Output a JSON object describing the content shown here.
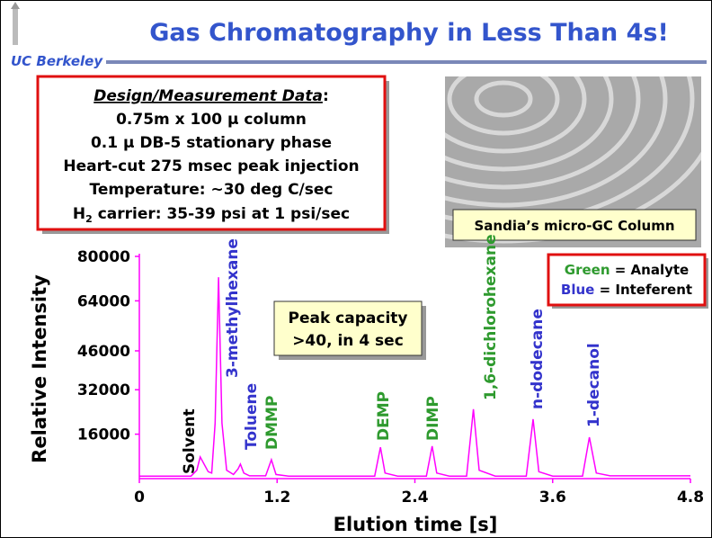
{
  "header": {
    "title": "Gas Chromatography in Less Than 4s!",
    "logo": "UC Berkeley"
  },
  "design_box": {
    "heading": "Design/Measurement Data",
    "heading_suffix": ":",
    "lines": [
      "0.75m x 100 μ column",
      "0.1 μ DB-5 stationary phase",
      "Heart-cut 275 msec peak injection",
      "Temperature: ~30 deg C/sec"
    ],
    "carrier": {
      "h": "H",
      "sub": "2",
      "rest": " carrier: 35-39 psi at 1 psi/sec"
    }
  },
  "photo_caption": "Sandia’s micro-GC Column",
  "legend_note": [
    {
      "word": "Green",
      "rest": " = Analyte",
      "color": "#2e9a2e"
    },
    {
      "word": "Blue",
      "rest": " = Inteferent",
      "color": "#3333cc"
    }
  ],
  "callout": [
    "Peak capacity",
    ">40, in 4 sec"
  ],
  "chart_data": {
    "type": "line",
    "x_label": "Elution time [s]",
    "y_label": "Relative Intensity",
    "color": "#ff00ff",
    "x": [
      0,
      0.45,
      0.5,
      0.53,
      0.6,
      0.63,
      0.66,
      0.69,
      0.72,
      0.76,
      0.82,
      0.86,
      0.88,
      0.91,
      0.96,
      1.1,
      1.15,
      1.19,
      1.3,
      2.05,
      2.1,
      2.14,
      2.25,
      2.5,
      2.55,
      2.59,
      2.7,
      2.85,
      2.91,
      2.96,
      3.1,
      3.37,
      3.43,
      3.48,
      3.6,
      3.86,
      3.92,
      3.98,
      4.1,
      4.8
    ],
    "values": [
      900,
      900,
      3000,
      7800,
      2500,
      2000,
      20000,
      72500,
      20000,
      3000,
      1500,
      3500,
      5200,
      2000,
      1000,
      1000,
      6800,
      1500,
      900,
      900,
      11300,
      2000,
      900,
      900,
      11700,
      2000,
      900,
      900,
      25000,
      3000,
      900,
      900,
      21400,
      2500,
      900,
      900,
      14900,
      2000,
      1000,
      1000
    ],
    "xlim": [
      0,
      4.8
    ],
    "xticks": [
      0,
      1.2,
      2.4,
      3.6,
      4.8
    ],
    "ylim": [
      0,
      80000
    ],
    "yticks": [
      16000,
      32000,
      46000,
      64000,
      80000
    ],
    "annotations": [
      {
        "text": "Solvent",
        "color": "#000000"
      },
      {
        "text": "3-methylhexane",
        "color": "#3333cc"
      },
      {
        "text": "Toluene",
        "color": "#3333cc"
      },
      {
        "text": "DMMP",
        "color": "#2e9a2e"
      },
      {
        "text": "DEMP",
        "color": "#2e9a2e"
      },
      {
        "text": "DIMP",
        "color": "#2e9a2e"
      },
      {
        "text": "1,6-dichlorohexane",
        "color": "#2e9a2e"
      },
      {
        "text": "n-dodecane",
        "color": "#3333cc"
      },
      {
        "text": "1-decanol",
        "color": "#3333cc"
      }
    ]
  }
}
